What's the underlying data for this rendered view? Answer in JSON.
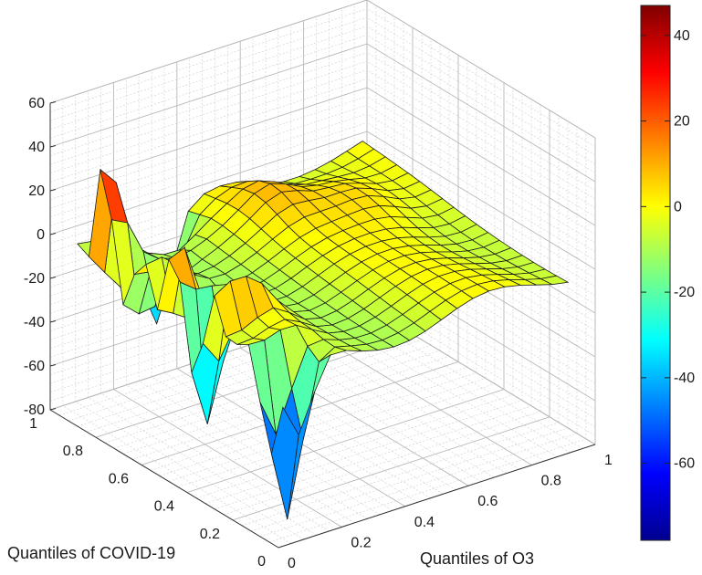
{
  "chart_data": {
    "type": "surface",
    "xlabel": "Quantiles of O3",
    "ylabel": "Quantiles of COVID-19",
    "zlabel": "",
    "x_ticks": [
      "0",
      "0.2",
      "0.4",
      "0.6",
      "0.8",
      "1"
    ],
    "y_ticks": [
      "0",
      "0.2",
      "0.4",
      "0.6",
      "0.8",
      "1"
    ],
    "z_ticks": [
      "-80",
      "-60",
      "-40",
      "-20",
      "0",
      "20",
      "40",
      "60"
    ],
    "zlim": [
      -80,
      60
    ],
    "colorbar": {
      "range": [
        -78,
        47
      ],
      "ticks": [
        "40",
        "20",
        "0",
        "-20",
        "-40",
        "-60"
      ],
      "colormap": "jet"
    },
    "grid": true,
    "x": [
      0.05,
      0.1,
      0.15,
      0.2,
      0.25,
      0.3,
      0.35,
      0.4,
      0.45,
      0.5,
      0.55,
      0.6,
      0.65,
      0.7,
      0.75,
      0.8,
      0.85,
      0.9,
      0.95
    ],
    "y": [
      0.05,
      0.1,
      0.15,
      0.2,
      0.25,
      0.3,
      0.35,
      0.4,
      0.45,
      0.5,
      0.55,
      0.6,
      0.65,
      0.7,
      0.75,
      0.8,
      0.85,
      0.9,
      0.95
    ],
    "z_summary": {
      "min": -78,
      "max": 47,
      "min_location": "low O3 (~0.05-0.15), low COVID-19 (~0.05-0.15)",
      "max_location": "high COVID-19 (~0.8-0.9), low O3 (~0.05-0.1)"
    }
  }
}
